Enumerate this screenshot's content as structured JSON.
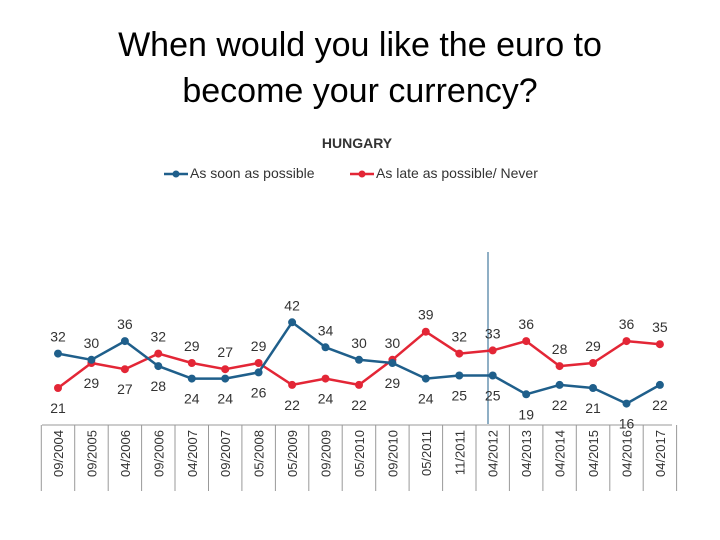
{
  "slide": {
    "title_line1": "When would you like the euro to",
    "title_line2": "become your currency?"
  },
  "chart_data": {
    "type": "line",
    "title": "HUNGARY",
    "categories": [
      "09/2004",
      "09/2005",
      "04/2006",
      "09/2006",
      "04/2007",
      "09/2007",
      "05/2008",
      "05/2009",
      "09/2009",
      "05/2010",
      "09/2010",
      "05/2011",
      "11/2011",
      "04/2012",
      "04/2013",
      "04/2014",
      "04/2015",
      "04/2016",
      "04/2017"
    ],
    "series": [
      {
        "name": "As soon as possible",
        "color": "#1f5f8b",
        "values": [
          32,
          30,
          36,
          28,
          24,
          24,
          26,
          42,
          34,
          30,
          29,
          24,
          25,
          25,
          19,
          22,
          21,
          16,
          22
        ]
      },
      {
        "name": "As late as possible/ Never",
        "color": "#e32636",
        "values": [
          21,
          29,
          27,
          32,
          29,
          27,
          29,
          22,
          24,
          22,
          30,
          39,
          32,
          33,
          36,
          28,
          29,
          36,
          35
        ]
      }
    ],
    "ylim": [
      10,
      50
    ],
    "legend_position": "top",
    "grid": false,
    "annotation_line_after_category": "11/2011"
  }
}
